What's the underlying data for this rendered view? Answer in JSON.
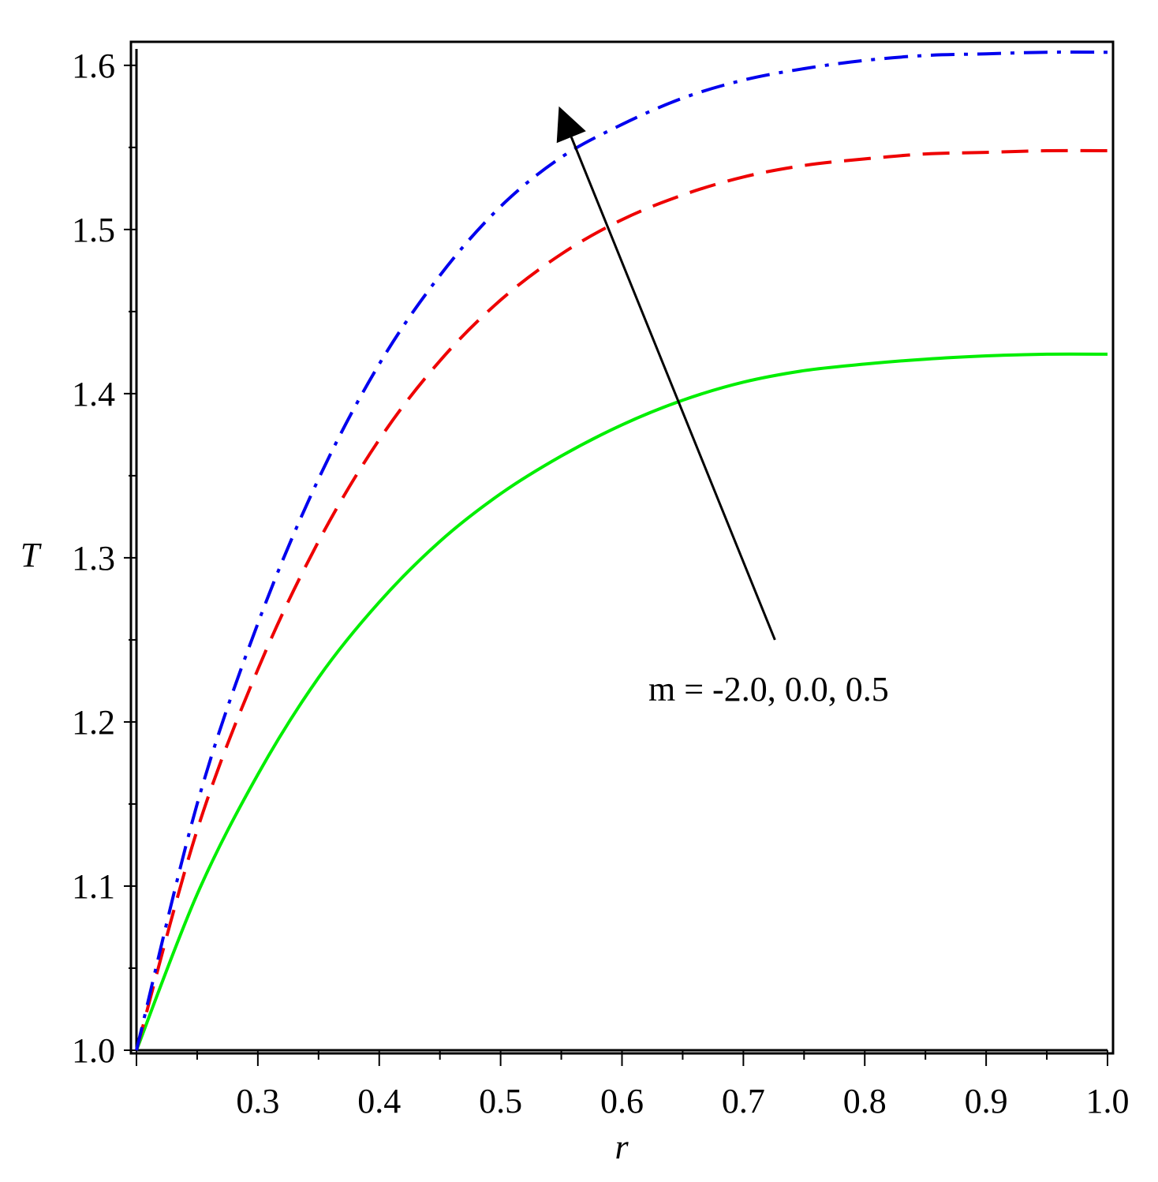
{
  "chart_data": {
    "type": "line",
    "title": "",
    "xlabel": "r",
    "ylabel": "T",
    "xlim": [
      0.2,
      1.0
    ],
    "ylim": [
      1.0,
      1.61
    ],
    "grid": false,
    "x_ticks": [
      0.3,
      0.4,
      0.5,
      0.6,
      0.7,
      0.8,
      0.9,
      1.0
    ],
    "x_tick_labels": [
      "0.3",
      "0.4",
      "0.5",
      "0.6",
      "0.7",
      "0.8",
      "0.9",
      "1.0"
    ],
    "y_ticks": [
      1.0,
      1.1,
      1.2,
      1.3,
      1.4,
      1.5,
      1.6
    ],
    "y_tick_labels": [
      "1.0",
      "1.1",
      "1.2",
      "1.3",
      "1.4",
      "1.5",
      "1.6"
    ],
    "x": [
      0.2,
      0.25,
      0.3,
      0.35,
      0.4,
      0.45,
      0.5,
      0.55,
      0.6,
      0.65,
      0.7,
      0.75,
      0.8,
      0.85,
      0.9,
      0.95,
      1.0
    ],
    "series": [
      {
        "color": "#00ee00",
        "style": "solid",
        "values": [
          1.0,
          1.095,
          1.168,
          1.227,
          1.273,
          1.31,
          1.339,
          1.362,
          1.381,
          1.396,
          1.407,
          1.414,
          1.418,
          1.421,
          1.423,
          1.424,
          1.424
        ]
      },
      {
        "color": "#ee0000",
        "style": "dashed",
        "values": [
          1.0,
          1.134,
          1.232,
          1.31,
          1.372,
          1.42,
          1.457,
          1.485,
          1.506,
          1.521,
          1.532,
          1.539,
          1.543,
          1.546,
          1.547,
          1.548,
          1.548
        ]
      },
      {
        "color": "#0000ee",
        "style": "dash-dot",
        "values": [
          1.0,
          1.15,
          1.26,
          1.348,
          1.418,
          1.472,
          1.514,
          1.544,
          1.564,
          1.58,
          1.591,
          1.598,
          1.603,
          1.606,
          1.607,
          1.608,
          1.608
        ]
      }
    ],
    "annotation": {
      "text": "m = -2.0, 0.0, 0.5",
      "arrow_from": [
        0.726,
        1.25
      ],
      "arrow_to": [
        0.548,
        1.575
      ]
    }
  }
}
